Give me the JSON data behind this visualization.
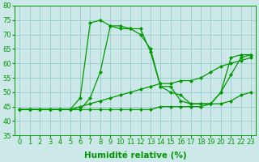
{
  "xlabel": "Humidité relative (%)",
  "background_color": "#cce8e8",
  "grid_color": "#99cccc",
  "line_color": "#009900",
  "xlim": [
    -0.5,
    23.5
  ],
  "ylim": [
    35,
    80
  ],
  "xticks": [
    0,
    1,
    2,
    3,
    4,
    5,
    6,
    7,
    8,
    9,
    10,
    11,
    12,
    13,
    14,
    15,
    16,
    17,
    18,
    19,
    20,
    21,
    22,
    23
  ],
  "yticks": [
    35,
    40,
    45,
    50,
    55,
    60,
    65,
    70,
    75,
    80
  ],
  "series": [
    [
      44,
      44,
      44,
      44,
      44,
      44,
      48,
      74,
      75,
      73,
      72,
      72,
      70,
      65,
      52,
      50,
      49,
      46,
      46,
      46,
      50,
      62,
      63,
      63
    ],
    [
      44,
      44,
      44,
      44,
      44,
      44,
      44,
      48,
      57,
      73,
      73,
      72,
      72,
      64,
      52,
      52,
      47,
      46,
      46,
      46,
      50,
      56,
      62,
      63
    ],
    [
      44,
      44,
      44,
      44,
      44,
      44,
      44,
      44,
      44,
      44,
      44,
      44,
      44,
      44,
      45,
      45,
      45,
      45,
      45,
      46,
      46,
      47,
      49,
      50
    ],
    [
      44,
      44,
      44,
      44,
      44,
      44,
      45,
      46,
      47,
      48,
      49,
      50,
      51,
      52,
      53,
      53,
      54,
      54,
      55,
      57,
      59,
      60,
      61,
      62
    ]
  ],
  "xlabel_fontsize": 7.5,
  "tick_fontsize": 6
}
